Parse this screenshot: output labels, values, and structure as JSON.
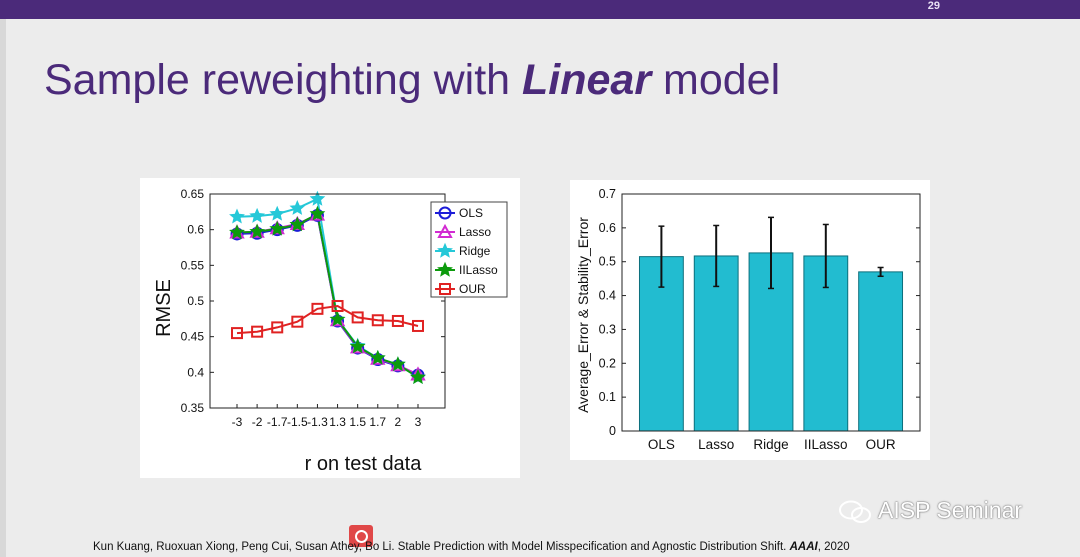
{
  "slide": {
    "number": "29",
    "title_prefix": "Sample reweighting with ",
    "title_emphasis": "Linear",
    "title_suffix": " model",
    "citation_text": "Kun Kuang, Ruoxuan Xiong, Peng Cui, Susan Athey, Bo Li. Stable Prediction with Model Misspecification and Agnostic Distribution Shift. ",
    "citation_venue": "AAAI",
    "citation_year": ", 2020",
    "watermark": "AISP Seminar"
  },
  "colors": {
    "bar_fill": "#22bcd0",
    "title": "#4b2a7a"
  },
  "chart_data": [
    {
      "type": "line",
      "xlabel": "r on test data",
      "ylabel": "RMSE",
      "categories": [
        "-3",
        "-2",
        "-1.7",
        "-1.5",
        "-1.3",
        "1.3",
        "1.5",
        "1.7",
        "2",
        "3"
      ],
      "ylim": [
        0.35,
        0.65
      ],
      "yticks": [
        "0.35",
        "0.4",
        "0.45",
        "0.5",
        "0.55",
        "0.6",
        "0.65"
      ],
      "legend_position": "top-right",
      "series": [
        {
          "name": "OLS",
          "color": "#1c1cd8",
          "marker": "circle",
          "values": [
            0.594,
            0.595,
            0.6,
            0.606,
            0.62,
            0.472,
            0.434,
            0.418,
            0.409,
            0.396
          ]
        },
        {
          "name": "Lasso",
          "color": "#d22ad2",
          "marker": "triangle",
          "values": [
            0.596,
            0.597,
            0.602,
            0.608,
            0.621,
            0.473,
            0.435,
            0.419,
            0.41,
            0.397
          ]
        },
        {
          "name": "Ridge",
          "color": "#25c8d8",
          "marker": "star",
          "values": [
            0.618,
            0.619,
            0.622,
            0.63,
            0.643,
            0.474,
            0.437,
            0.42,
            0.411,
            0.393
          ]
        },
        {
          "name": "IILasso",
          "color": "#0c9a0c",
          "marker": "pentagram",
          "values": [
            0.596,
            0.597,
            0.601,
            0.607,
            0.622,
            0.474,
            0.436,
            0.42,
            0.411,
            0.393
          ]
        },
        {
          "name": "OUR",
          "color": "#e02222",
          "marker": "square",
          "values": [
            0.455,
            0.457,
            0.463,
            0.471,
            0.489,
            0.493,
            0.477,
            0.473,
            0.472,
            0.465
          ]
        }
      ]
    },
    {
      "type": "bar",
      "ylabel": "Average_Error & Stability_Error",
      "categories": [
        "OLS",
        "Lasso",
        "Ridge",
        "IILasso",
        "OUR"
      ],
      "values": [
        0.515,
        0.517,
        0.526,
        0.517,
        0.47
      ],
      "errors": [
        0.09,
        0.09,
        0.105,
        0.093,
        0.013
      ],
      "ylim": [
        0,
        0.7
      ],
      "yticks": [
        "0",
        "0.1",
        "0.2",
        "0.3",
        "0.4",
        "0.5",
        "0.6",
        "0.7"
      ]
    }
  ]
}
